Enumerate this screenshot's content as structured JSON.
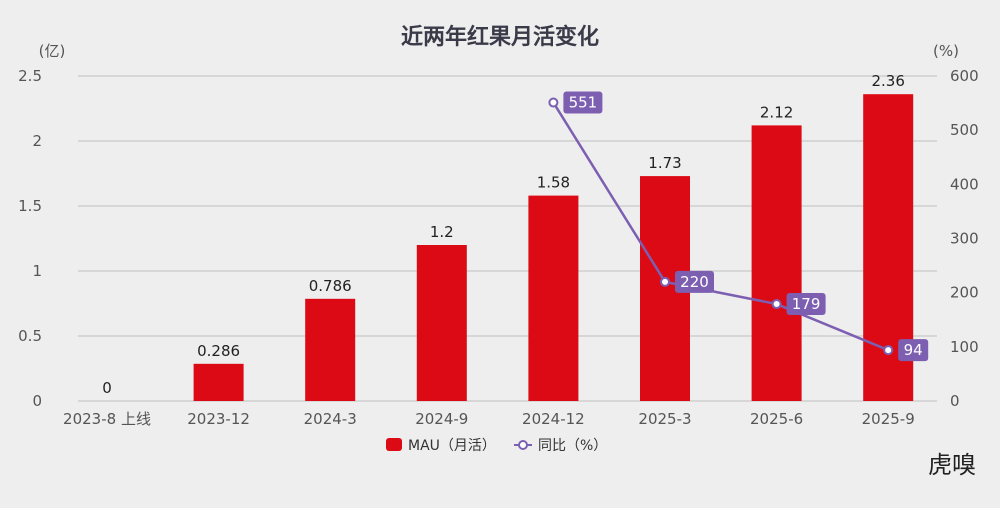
{
  "chart_data": {
    "type": "bar",
    "title": "近两年红果月活变化",
    "left_unit": "(亿)",
    "right_unit": "(%)",
    "categories": [
      "2023-8 上线",
      "2023-12",
      "2024-3",
      "2024-9",
      "2024-12",
      "2025-3",
      "2025-6",
      "2025-9"
    ],
    "series": [
      {
        "name": "MAU（月活）",
        "type": "bar",
        "axis": "left",
        "color": "#dc0a14",
        "values": [
          0,
          0.286,
          0.786,
          1.2,
          1.58,
          1.73,
          2.12,
          2.36
        ],
        "labels": [
          "0",
          "0.286",
          "0.786",
          "1.2",
          "1.58",
          "1.73",
          "2.12",
          "2.36"
        ]
      },
      {
        "name": "同比（%）",
        "type": "line",
        "axis": "right",
        "color": "#7d5fb2",
        "values": [
          null,
          null,
          null,
          null,
          551,
          220,
          179,
          94
        ],
        "labels": [
          "",
          "",
          "",
          "",
          "551",
          "220",
          "179",
          "94"
        ]
      }
    ],
    "ylim_left": [
      0,
      2.5
    ],
    "yticks_left": [
      "0",
      "0.5",
      "1",
      "1.5",
      "2",
      "2.5"
    ],
    "ylim_right": [
      0,
      600
    ],
    "yticks_right": [
      "0",
      "100",
      "200",
      "300",
      "400",
      "500",
      "600"
    ],
    "grid": true,
    "legend_position": "bottom"
  },
  "watermark": "虎嗅"
}
